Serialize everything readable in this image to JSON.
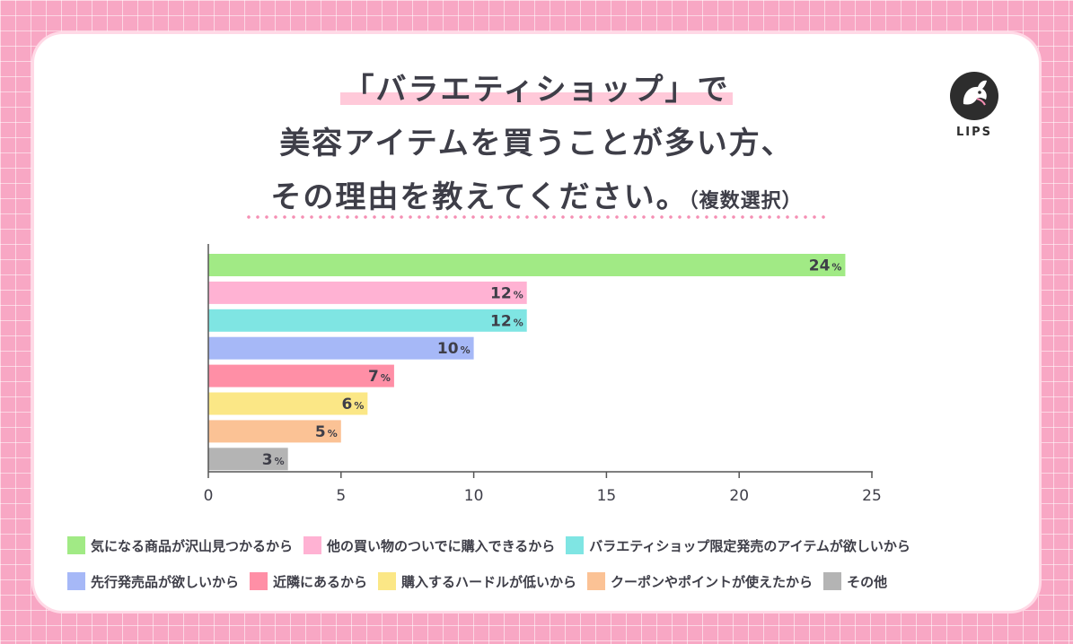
{
  "title": {
    "line1": "「バラエティショップ」で",
    "line2": "美容アイテムを買うことが多い方、",
    "line3_main": "その理由を教えてください。",
    "line3_note": "（複数選択）"
  },
  "brand": {
    "name": "LIPS"
  },
  "colors": {
    "background": "#f8a7c4",
    "series": [
      "#a1ea85",
      "#ffb2d3",
      "#7fe5e3",
      "#a6b8f7",
      "#ff8fa6",
      "#fbe786",
      "#fbc295",
      "#b4b4b4"
    ]
  },
  "chart_data": {
    "type": "bar",
    "orientation": "horizontal",
    "categories": [
      "気になる商品が沢山見つかるから",
      "他の買い物のついでに購入できるから",
      "バラエティショップ限定発売のアイテムが欲しいから",
      "先行発売品が欲しいから",
      "近隣にあるから",
      "購入するハードルが低いから",
      "クーポンやポイントが使えたから",
      "その他"
    ],
    "values": [
      24,
      12,
      12,
      10,
      7,
      6,
      5,
      3
    ],
    "unit": "%",
    "xlim": [
      0,
      25
    ],
    "xticks": [
      0,
      5,
      10,
      15,
      20,
      25
    ],
    "grid": false,
    "legend_position": "bottom"
  }
}
